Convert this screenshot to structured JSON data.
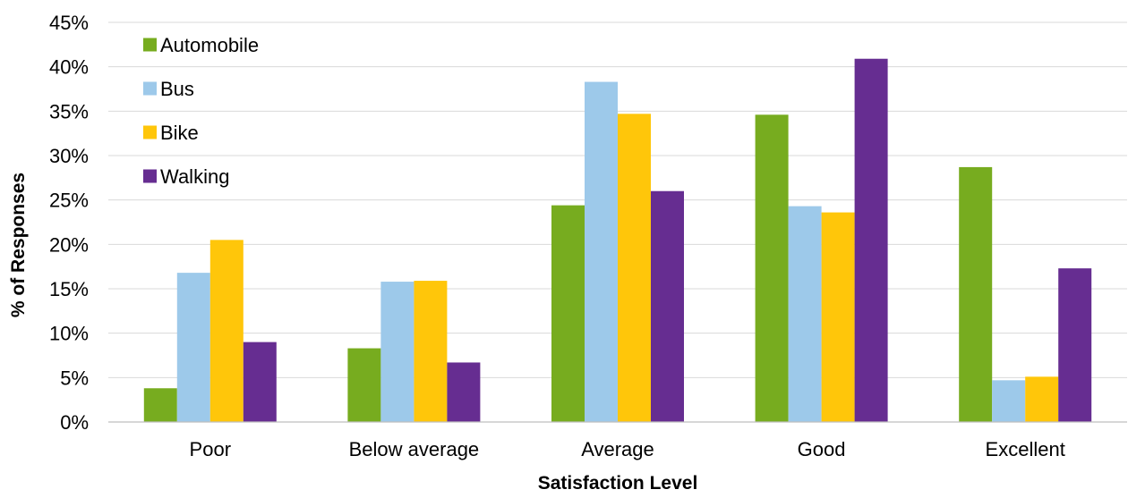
{
  "chart_data": {
    "type": "bar",
    "title": "",
    "xlabel": "Satisfaction Level",
    "ylabel": "% of Responses",
    "categories": [
      "Poor",
      "Below average",
      "Average",
      "Good",
      "Excellent"
    ],
    "series": [
      {
        "name": "Automobile",
        "color": "#77AC1F",
        "values": [
          3.8,
          8.3,
          24.4,
          34.6,
          28.7
        ]
      },
      {
        "name": "Bus",
        "color": "#9DC9EA",
        "values": [
          16.8,
          15.8,
          38.3,
          24.3,
          4.7
        ]
      },
      {
        "name": "Bike",
        "color": "#FFC60A",
        "values": [
          20.5,
          15.9,
          34.7,
          23.6,
          5.1
        ]
      },
      {
        "name": "Walking",
        "color": "#662D91",
        "values": [
          9.0,
          6.7,
          26.0,
          40.9,
          17.3
        ]
      }
    ],
    "ylim": [
      0,
      45
    ],
    "y_ticks": [
      "0%",
      "5%",
      "10%",
      "15%",
      "20%",
      "25%",
      "30%",
      "35%",
      "40%",
      "45%"
    ],
    "grid": "horizontal",
    "legend_position": "top-left"
  }
}
